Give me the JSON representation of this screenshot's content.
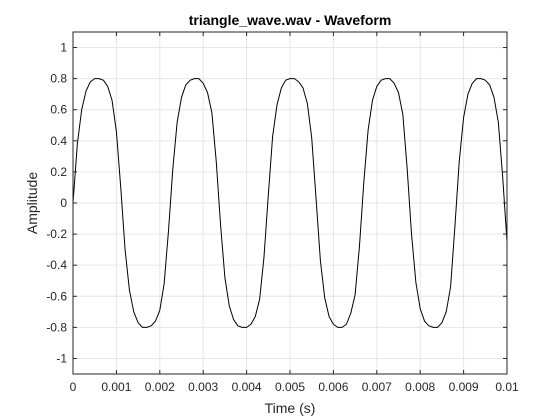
{
  "chart_data": {
    "type": "line",
    "title": "triangle_wave.wav - Waveform",
    "xlabel": "Time (s)",
    "ylabel": "Amplitude",
    "xlim": [
      0,
      0.01
    ],
    "ylim": [
      -1.1,
      1.1
    ],
    "xticks": [
      0,
      0.001,
      0.002,
      0.003,
      0.004,
      0.005,
      0.006,
      0.007,
      0.008,
      0.009,
      0.01
    ],
    "xtick_labels": [
      "0",
      "0.001",
      "0.002",
      "0.003",
      "0.004",
      "0.005",
      "0.006",
      "0.007",
      "0.008",
      "0.009",
      "0.01"
    ],
    "yticks": [
      -1,
      -0.8,
      -0.6,
      -0.4,
      -0.2,
      0,
      0.2,
      0.4,
      0.6,
      0.8,
      1
    ],
    "ytick_labels": [
      "-1",
      "-0.8",
      "-0.6",
      "-0.4",
      "-0.2",
      "0",
      "0.2",
      "0.4",
      "0.6",
      "0.8",
      "1"
    ],
    "grid": true,
    "line_color": "#000000",
    "grid_color": "#e6e6e6",
    "axis_color": "#262626",
    "series": [
      {
        "x": [
          0,
          0.0001,
          0.0002,
          0.0003,
          0.0004,
          0.0005,
          0.0006,
          0.0007,
          0.0008,
          0.0009,
          0.001,
          0.0011,
          0.0012,
          0.0013,
          0.0014,
          0.0015,
          0.0016,
          0.0017,
          0.0018,
          0.0019,
          0.002,
          0.0021,
          0.0022,
          0.0023,
          0.0024,
          0.0025,
          0.0026,
          0.0027,
          0.0028,
          0.0029,
          0.003,
          0.0031,
          0.0032,
          0.0033,
          0.0034,
          0.0035,
          0.0036,
          0.0037,
          0.0038,
          0.0039,
          0.004,
          0.0041,
          0.0042,
          0.0043,
          0.0044,
          0.0045,
          0.0046,
          0.0047,
          0.0048,
          0.0049,
          0.005,
          0.0051,
          0.0052,
          0.0053,
          0.0054,
          0.0055,
          0.0056,
          0.0057,
          0.0058,
          0.0059,
          0.006,
          0.0061,
          0.0062,
          0.0063,
          0.0064,
          0.0065,
          0.0066,
          0.0067,
          0.0068,
          0.0069,
          0.007,
          0.0071,
          0.0072,
          0.0073,
          0.0074,
          0.0075,
          0.0076,
          0.0077,
          0.0078,
          0.0079,
          0.008,
          0.0081,
          0.0082,
          0.0083,
          0.0084,
          0.0085,
          0.0086,
          0.0087,
          0.0088,
          0.0089,
          0.009,
          0.0091,
          0.0092,
          0.0093,
          0.0094,
          0.0095,
          0.0096,
          0.0097,
          0.0098,
          0.0099,
          0.01
        ],
        "y": [
          0,
          0.38,
          0.6,
          0.72,
          0.78,
          0.8,
          0.8,
          0.79,
          0.75,
          0.66,
          0.46,
          0.1,
          -0.3,
          -0.56,
          -0.7,
          -0.77,
          -0.8,
          -0.8,
          -0.79,
          -0.76,
          -0.69,
          -0.52,
          -0.18,
          0.22,
          0.52,
          0.68,
          0.76,
          0.79,
          0.8,
          0.8,
          0.77,
          0.71,
          0.58,
          0.27,
          -0.14,
          -0.48,
          -0.66,
          -0.75,
          -0.79,
          -0.8,
          -0.8,
          -0.78,
          -0.73,
          -0.62,
          -0.35,
          0.05,
          0.43,
          0.63,
          0.74,
          0.79,
          0.8,
          0.8,
          0.78,
          0.74,
          0.64,
          0.42,
          0.03,
          -0.37,
          -0.61,
          -0.73,
          -0.78,
          -0.8,
          -0.8,
          -0.78,
          -0.71,
          -0.59,
          -0.28,
          0.13,
          0.47,
          0.66,
          0.75,
          0.79,
          0.8,
          0.8,
          0.77,
          0.71,
          0.57,
          0.22,
          -0.2,
          -0.51,
          -0.68,
          -0.76,
          -0.79,
          -0.8,
          -0.8,
          -0.77,
          -0.7,
          -0.54,
          -0.15,
          0.27,
          0.55,
          0.7,
          0.77,
          0.8,
          0.8,
          0.79,
          0.76,
          0.68,
          0.52,
          0.17,
          -0.25
        ]
      }
    ]
  }
}
